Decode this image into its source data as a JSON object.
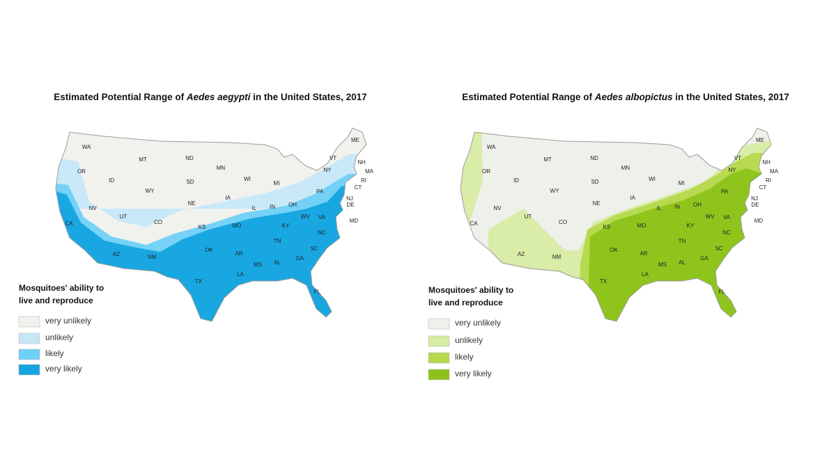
{
  "maps": [
    {
      "title": {
        "prefix": "Estimated Potential Range of ",
        "species": "Aedes aegypti",
        "suffix": " in the United States, 2017"
      },
      "legend": {
        "title": [
          "Mosquitoes' ability to",
          "live and reproduce"
        ],
        "items": [
          {
            "label": "very unlikely",
            "color": "#f1f1ee"
          },
          {
            "label": "unlikely",
            "color": "#c6e7f8"
          },
          {
            "label": "likely",
            "color": "#6fd0f5"
          },
          {
            "label": "very likely",
            "color": "#14a4e0"
          }
        ]
      }
    },
    {
      "title": {
        "prefix": "Estimated Potential Range of ",
        "species": "Aedes albopictus",
        "suffix": " in the United States, 2017"
      },
      "legend": {
        "title": [
          "Mosquitoes' ability to",
          "live and reproduce"
        ],
        "items": [
          {
            "label": "very unlikely",
            "color": "#eef0ea"
          },
          {
            "label": "unlikely",
            "color": "#d7eba4"
          },
          {
            "label": "likely",
            "color": "#b5d94c"
          },
          {
            "label": "very likely",
            "color": "#8cc31a"
          }
        ]
      }
    }
  ],
  "states": [
    "WA",
    "OR",
    "ID",
    "MT",
    "WY",
    "NV",
    "UT",
    "CO",
    "CA",
    "AZ",
    "NM",
    "ND",
    "SD",
    "NE",
    "KS",
    "OK",
    "TX",
    "MN",
    "IA",
    "MO",
    "AR",
    "LA",
    "WI",
    "IL",
    "MS",
    "MI",
    "IN",
    "KY",
    "TN",
    "AL",
    "OH",
    "WV",
    "GA",
    "FL",
    "SC",
    "NC",
    "VA",
    "PA",
    "NY",
    "VT",
    "ME",
    "NH",
    "MA",
    "RI",
    "CT",
    "NJ",
    "DE",
    "MD"
  ]
}
